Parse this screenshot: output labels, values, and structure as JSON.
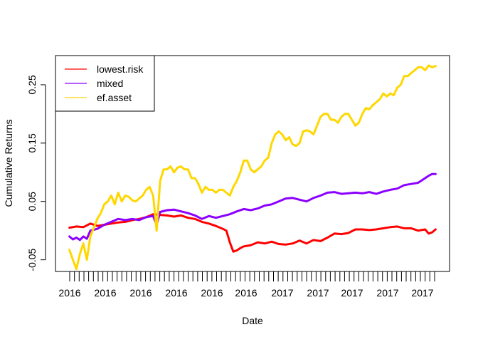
{
  "chart_data": {
    "type": "line",
    "title": "",
    "xlabel": "Date",
    "ylabel": "Cumulative Returns",
    "ylim": [
      -0.07,
      0.3
    ],
    "y_ticks": [
      -0.05,
      0.05,
      0.15,
      0.25
    ],
    "y_tick_labels": [
      "-0.05",
      "0.05",
      "0.15",
      "0.25"
    ],
    "x_tick_labels": [
      "2016",
      "2016",
      "2016",
      "2016",
      "2016",
      "2016",
      "2017",
      "2017",
      "2017",
      "2017",
      "2017"
    ],
    "legend_position": "top-left",
    "grid": false,
    "series": [
      {
        "name": "lowest.risk",
        "color": "#FF0000",
        "points": [
          [
            0,
            0.005
          ],
          [
            4,
            0.007
          ],
          [
            8,
            0.006
          ],
          [
            12,
            0.012
          ],
          [
            16,
            0.008
          ],
          [
            20,
            0.01
          ],
          [
            24,
            0.012
          ],
          [
            28,
            0.014
          ],
          [
            32,
            0.015
          ],
          [
            36,
            0.018
          ],
          [
            40,
            0.02
          ],
          [
            44,
            0.023
          ],
          [
            48,
            0.028
          ],
          [
            52,
            0.027
          ],
          [
            56,
            0.026
          ],
          [
            60,
            0.024
          ],
          [
            64,
            0.026
          ],
          [
            68,
            0.022
          ],
          [
            72,
            0.02
          ],
          [
            76,
            0.015
          ],
          [
            80,
            0.012
          ],
          [
            84,
            0.008
          ],
          [
            88,
            0.003
          ],
          [
            90,
            0.0
          ],
          [
            92,
            -0.02
          ],
          [
            94,
            -0.036
          ],
          [
            96,
            -0.034
          ],
          [
            98,
            -0.03
          ],
          [
            100,
            -0.027
          ],
          [
            104,
            -0.025
          ],
          [
            108,
            -0.02
          ],
          [
            112,
            -0.022
          ],
          [
            116,
            -0.019
          ],
          [
            120,
            -0.023
          ],
          [
            124,
            -0.024
          ],
          [
            128,
            -0.022
          ],
          [
            132,
            -0.017
          ],
          [
            136,
            -0.022
          ],
          [
            140,
            -0.016
          ],
          [
            144,
            -0.018
          ],
          [
            148,
            -0.012
          ],
          [
            152,
            -0.005
          ],
          [
            156,
            -0.006
          ],
          [
            160,
            -0.004
          ],
          [
            164,
            0.002
          ],
          [
            168,
            0.002
          ],
          [
            172,
            0.001
          ],
          [
            176,
            0.002
          ],
          [
            180,
            0.004
          ],
          [
            184,
            0.006
          ],
          [
            188,
            0.007
          ],
          [
            192,
            0.004
          ],
          [
            196,
            0.004
          ],
          [
            200,
            0.0
          ],
          [
            204,
            0.002
          ],
          [
            206,
            -0.005
          ],
          [
            208,
            -0.003
          ],
          [
            210,
            0.002
          ]
        ]
      },
      {
        "name": "mixed",
        "color": "#8B00FF",
        "points": [
          [
            0,
            -0.01
          ],
          [
            2,
            -0.015
          ],
          [
            4,
            -0.012
          ],
          [
            6,
            -0.016
          ],
          [
            8,
            -0.01
          ],
          [
            10,
            -0.014
          ],
          [
            12,
            0.0
          ],
          [
            16,
            0.003
          ],
          [
            20,
            0.01
          ],
          [
            24,
            0.015
          ],
          [
            28,
            0.02
          ],
          [
            32,
            0.018
          ],
          [
            36,
            0.02
          ],
          [
            40,
            0.018
          ],
          [
            44,
            0.023
          ],
          [
            48,
            0.025
          ],
          [
            50,
            0.01
          ],
          [
            52,
            0.032
          ],
          [
            56,
            0.035
          ],
          [
            60,
            0.036
          ],
          [
            64,
            0.033
          ],
          [
            68,
            0.03
          ],
          [
            72,
            0.026
          ],
          [
            76,
            0.02
          ],
          [
            80,
            0.025
          ],
          [
            84,
            0.022
          ],
          [
            88,
            0.025
          ],
          [
            92,
            0.028
          ],
          [
            96,
            0.033
          ],
          [
            100,
            0.037
          ],
          [
            104,
            0.035
          ],
          [
            108,
            0.038
          ],
          [
            112,
            0.043
          ],
          [
            116,
            0.045
          ],
          [
            120,
            0.05
          ],
          [
            124,
            0.055
          ],
          [
            128,
            0.056
          ],
          [
            132,
            0.053
          ],
          [
            136,
            0.05
          ],
          [
            140,
            0.056
          ],
          [
            144,
            0.06
          ],
          [
            148,
            0.065
          ],
          [
            152,
            0.066
          ],
          [
            156,
            0.063
          ],
          [
            160,
            0.064
          ],
          [
            164,
            0.065
          ],
          [
            168,
            0.064
          ],
          [
            172,
            0.066
          ],
          [
            176,
            0.063
          ],
          [
            180,
            0.067
          ],
          [
            184,
            0.07
          ],
          [
            188,
            0.072
          ],
          [
            192,
            0.078
          ],
          [
            196,
            0.08
          ],
          [
            200,
            0.082
          ],
          [
            204,
            0.09
          ],
          [
            206,
            0.094
          ],
          [
            208,
            0.097
          ],
          [
            210,
            0.097
          ]
        ]
      },
      {
        "name": "ef.asset",
        "color": "#FFD700",
        "points": [
          [
            0,
            -0.033
          ],
          [
            2,
            -0.05
          ],
          [
            4,
            -0.066
          ],
          [
            6,
            -0.04
          ],
          [
            8,
            -0.022
          ],
          [
            10,
            -0.05
          ],
          [
            12,
            -0.01
          ],
          [
            16,
            0.02
          ],
          [
            18,
            0.03
          ],
          [
            20,
            0.045
          ],
          [
            22,
            0.05
          ],
          [
            24,
            0.06
          ],
          [
            26,
            0.045
          ],
          [
            28,
            0.065
          ],
          [
            30,
            0.05
          ],
          [
            32,
            0.06
          ],
          [
            34,
            0.058
          ],
          [
            36,
            0.052
          ],
          [
            38,
            0.05
          ],
          [
            40,
            0.055
          ],
          [
            42,
            0.06
          ],
          [
            44,
            0.07
          ],
          [
            46,
            0.075
          ],
          [
            48,
            0.06
          ],
          [
            50,
            0.0
          ],
          [
            52,
            0.085
          ],
          [
            54,
            0.105
          ],
          [
            56,
            0.105
          ],
          [
            58,
            0.11
          ],
          [
            60,
            0.1
          ],
          [
            62,
            0.108
          ],
          [
            64,
            0.11
          ],
          [
            66,
            0.105
          ],
          [
            68,
            0.105
          ],
          [
            70,
            0.09
          ],
          [
            72,
            0.09
          ],
          [
            74,
            0.08
          ],
          [
            76,
            0.065
          ],
          [
            78,
            0.075
          ],
          [
            80,
            0.07
          ],
          [
            82,
            0.07
          ],
          [
            84,
            0.065
          ],
          [
            86,
            0.07
          ],
          [
            88,
            0.07
          ],
          [
            90,
            0.065
          ],
          [
            92,
            0.06
          ],
          [
            94,
            0.075
          ],
          [
            96,
            0.085
          ],
          [
            98,
            0.1
          ],
          [
            100,
            0.12
          ],
          [
            102,
            0.12
          ],
          [
            104,
            0.105
          ],
          [
            106,
            0.1
          ],
          [
            108,
            0.105
          ],
          [
            110,
            0.11
          ],
          [
            112,
            0.12
          ],
          [
            114,
            0.125
          ],
          [
            116,
            0.15
          ],
          [
            118,
            0.165
          ],
          [
            120,
            0.17
          ],
          [
            122,
            0.165
          ],
          [
            124,
            0.155
          ],
          [
            126,
            0.16
          ],
          [
            128,
            0.148
          ],
          [
            130,
            0.145
          ],
          [
            132,
            0.15
          ],
          [
            134,
            0.17
          ],
          [
            136,
            0.172
          ],
          [
            138,
            0.17
          ],
          [
            140,
            0.165
          ],
          [
            142,
            0.18
          ],
          [
            144,
            0.195
          ],
          [
            146,
            0.2
          ],
          [
            148,
            0.2
          ],
          [
            150,
            0.19
          ],
          [
            152,
            0.19
          ],
          [
            154,
            0.185
          ],
          [
            156,
            0.195
          ],
          [
            158,
            0.2
          ],
          [
            160,
            0.2
          ],
          [
            162,
            0.19
          ],
          [
            164,
            0.18
          ],
          [
            166,
            0.185
          ],
          [
            168,
            0.2
          ],
          [
            170,
            0.21
          ],
          [
            172,
            0.208
          ],
          [
            174,
            0.215
          ],
          [
            176,
            0.22
          ],
          [
            178,
            0.225
          ],
          [
            180,
            0.235
          ],
          [
            182,
            0.23
          ],
          [
            184,
            0.235
          ],
          [
            186,
            0.232
          ],
          [
            188,
            0.245
          ],
          [
            190,
            0.25
          ],
          [
            192,
            0.265
          ],
          [
            194,
            0.265
          ],
          [
            196,
            0.27
          ],
          [
            198,
            0.275
          ],
          [
            200,
            0.28
          ],
          [
            202,
            0.28
          ],
          [
            204,
            0.275
          ],
          [
            206,
            0.283
          ],
          [
            208,
            0.28
          ],
          [
            210,
            0.282
          ]
        ]
      }
    ]
  }
}
